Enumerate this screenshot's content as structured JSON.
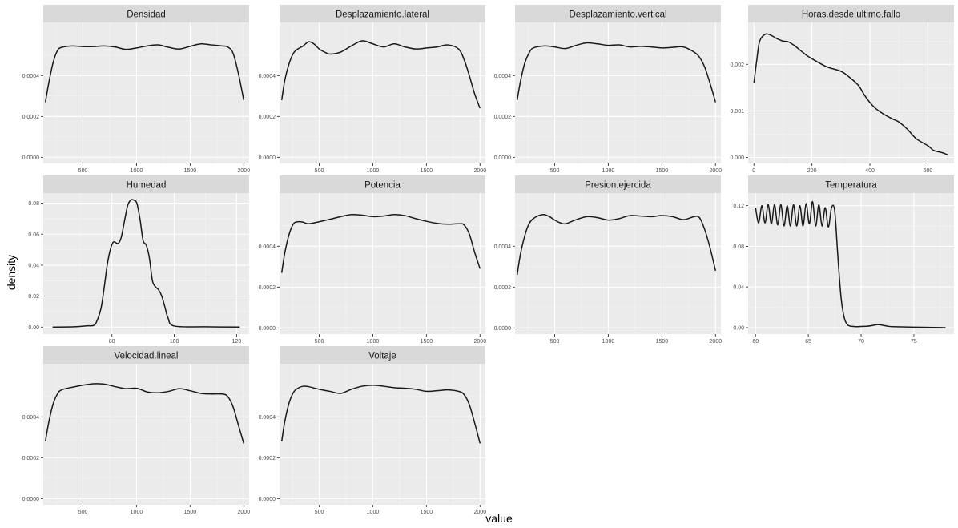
{
  "chart_data": {
    "type": "line",
    "xlabel": "value",
    "ylabel": "density",
    "panels": [
      {
        "name": "Densidad",
        "xlim": [
          130,
          2050
        ],
        "ylim": [
          -3e-05,
          0.00066
        ],
        "xticks": [
          500,
          1000,
          1500,
          2000
        ],
        "yticks": [
          0.0,
          0.0002,
          0.0004
        ],
        "ytick_labels": [
          "0.0000",
          "0.0002",
          "0.0004"
        ],
        "x": [
          150,
          180,
          220,
          260,
          300,
          400,
          500,
          600,
          700,
          800,
          900,
          1000,
          1100,
          1200,
          1300,
          1400,
          1500,
          1600,
          1700,
          1800,
          1850,
          1900,
          1950,
          2000
        ],
        "y": [
          0.00027,
          0.00036,
          0.00046,
          0.00052,
          0.000538,
          0.000545,
          0.000542,
          0.000542,
          0.000545,
          0.00054,
          0.000528,
          0.000535,
          0.000545,
          0.00055,
          0.000538,
          0.00053,
          0.000543,
          0.000555,
          0.00055,
          0.000545,
          0.00054,
          0.00051,
          0.00041,
          0.00028
        ]
      },
      {
        "name": "Desplazamiento.lateral",
        "xlim": [
          130,
          2050
        ],
        "ylim": [
          -3e-05,
          0.00066
        ],
        "xticks": [
          500,
          1000,
          1500,
          2000
        ],
        "yticks": [
          0.0,
          0.0002,
          0.0004
        ],
        "ytick_labels": [
          "0.0000",
          "0.0002",
          "0.0004"
        ],
        "x": [
          150,
          180,
          220,
          260,
          300,
          350,
          400,
          450,
          500,
          550,
          600,
          700,
          800,
          900,
          1000,
          1100,
          1200,
          1300,
          1400,
          1500,
          1600,
          1700,
          1800,
          1850,
          1900,
          1950,
          2000
        ],
        "y": [
          0.00028,
          0.00038,
          0.00046,
          0.00051,
          0.00053,
          0.000545,
          0.000565,
          0.000555,
          0.00053,
          0.000515,
          0.000505,
          0.000515,
          0.000545,
          0.00057,
          0.000555,
          0.00054,
          0.000555,
          0.00054,
          0.00053,
          0.000535,
          0.00054,
          0.00055,
          0.00053,
          0.00048,
          0.0004,
          0.00031,
          0.00024
        ]
      },
      {
        "name": "Desplazamiento.vertical",
        "xlim": [
          130,
          2050
        ],
        "ylim": [
          -3e-05,
          0.00066
        ],
        "xticks": [
          500,
          1000,
          1500,
          2000
        ],
        "yticks": [
          0.0,
          0.0002,
          0.0004
        ],
        "ytick_labels": [
          "0.0000",
          "0.0002",
          "0.0004"
        ],
        "x": [
          150,
          180,
          220,
          260,
          300,
          400,
          500,
          600,
          700,
          800,
          900,
          1000,
          1100,
          1200,
          1300,
          1400,
          1500,
          1600,
          1700,
          1800,
          1850,
          1900,
          1950,
          2000
        ],
        "y": [
          0.00028,
          0.00037,
          0.00046,
          0.00051,
          0.000535,
          0.000545,
          0.00054,
          0.000532,
          0.000548,
          0.00056,
          0.000555,
          0.000548,
          0.00055,
          0.00054,
          0.000543,
          0.00054,
          0.000535,
          0.000538,
          0.00054,
          0.000515,
          0.00049,
          0.00044,
          0.00036,
          0.00027
        ]
      },
      {
        "name": "Horas.desde.ultimo.fallo",
        "xlim": [
          -20,
          690
        ],
        "ylim": [
          -0.00013,
          0.0029
        ],
        "xticks": [
          0,
          200,
          400,
          600
        ],
        "yticks": [
          0.0,
          0.001,
          0.002
        ],
        "ytick_labels": [
          "0.000",
          "0.001",
          "0.002"
        ],
        "x": [
          0,
          10,
          20,
          40,
          60,
          80,
          100,
          120,
          140,
          160,
          180,
          200,
          250,
          300,
          330,
          360,
          380,
          400,
          420,
          450,
          480,
          500,
          530,
          560,
          600,
          620,
          650,
          670
        ],
        "y": [
          0.0016,
          0.0021,
          0.0025,
          0.00265,
          0.00262,
          0.00255,
          0.0025,
          0.00248,
          0.0024,
          0.0023,
          0.0022,
          0.00212,
          0.00195,
          0.00185,
          0.00172,
          0.00155,
          0.00135,
          0.00118,
          0.00105,
          0.00092,
          0.00082,
          0.00076,
          0.0006,
          0.0004,
          0.00025,
          0.00015,
          0.0001,
          5e-05
        ]
      },
      {
        "name": "Humedad",
        "xlim": [
          58,
          124
        ],
        "ylim": [
          -0.0045,
          0.0865
        ],
        "xticks": [
          80,
          100,
          120
        ],
        "yticks": [
          0.0,
          0.02,
          0.04,
          0.06,
          0.08
        ],
        "ytick_labels": [
          "0.00",
          "0.02",
          "0.04",
          "0.06",
          "0.08"
        ],
        "x": [
          61,
          68,
          72,
          74,
          75,
          76.5,
          77.5,
          78.5,
          79.5,
          80.5,
          82,
          83,
          84,
          85,
          86,
          87,
          88,
          89,
          90,
          91,
          92,
          93,
          94,
          95,
          96,
          97,
          98,
          100,
          110,
          121
        ],
        "y": [
          0.0,
          0.0002,
          0.0008,
          0.001,
          0.003,
          0.012,
          0.025,
          0.04,
          0.05,
          0.055,
          0.054,
          0.058,
          0.068,
          0.078,
          0.082,
          0.082,
          0.08,
          0.07,
          0.056,
          0.053,
          0.045,
          0.03,
          0.026,
          0.024,
          0.02,
          0.013,
          0.006,
          0.0007,
          0.0002,
          0.0
        ]
      },
      {
        "name": "Potencia",
        "xlim": [
          130,
          2050
        ],
        "ylim": [
          -3e-05,
          0.00066
        ],
        "xticks": [
          500,
          1000,
          1500,
          2000
        ],
        "yticks": [
          0.0,
          0.0002,
          0.0004
        ],
        "ytick_labels": [
          "0.0000",
          "0.0002",
          "0.0004"
        ],
        "x": [
          150,
          180,
          220,
          260,
          300,
          350,
          400,
          500,
          600,
          700,
          800,
          900,
          1000,
          1100,
          1200,
          1300,
          1400,
          1500,
          1600,
          1700,
          1800,
          1850,
          1900,
          1950,
          2000
        ],
        "y": [
          0.00027,
          0.00037,
          0.00046,
          0.00051,
          0.00052,
          0.000518,
          0.00051,
          0.00052,
          0.000532,
          0.000545,
          0.000555,
          0.000552,
          0.000545,
          0.000548,
          0.000555,
          0.00055,
          0.000535,
          0.000522,
          0.000512,
          0.000508,
          0.00051,
          0.000505,
          0.00046,
          0.00037,
          0.00029
        ]
      },
      {
        "name": "Presion.ejercida",
        "xlim": [
          130,
          2050
        ],
        "ylim": [
          -3e-05,
          0.00066
        ],
        "xticks": [
          500,
          1000,
          1500,
          2000
        ],
        "yticks": [
          0.0,
          0.0002,
          0.0004
        ],
        "ytick_labels": [
          "0.0000",
          "0.0002",
          "0.0004"
        ],
        "x": [
          150,
          180,
          220,
          260,
          300,
          350,
          400,
          450,
          500,
          550,
          600,
          700,
          800,
          900,
          1000,
          1100,
          1200,
          1300,
          1400,
          1500,
          1600,
          1700,
          1800,
          1850,
          1900,
          1950,
          2000
        ],
        "y": [
          0.00026,
          0.00036,
          0.00045,
          0.00051,
          0.000535,
          0.00055,
          0.000555,
          0.000545,
          0.000528,
          0.000515,
          0.00051,
          0.00053,
          0.000545,
          0.00054,
          0.000528,
          0.000535,
          0.00055,
          0.000548,
          0.000545,
          0.00055,
          0.000545,
          0.00053,
          0.000545,
          0.00054,
          0.00048,
          0.00039,
          0.00028
        ]
      },
      {
        "name": "Temperatura",
        "xlim": [
          59.3,
          78.8
        ],
        "ylim": [
          -0.0063,
          0.1323
        ],
        "xticks": [
          60,
          65,
          70,
          75
        ],
        "yticks": [
          0.0,
          0.04,
          0.08,
          0.12
        ],
        "ytick_labels": [
          "0.00",
          "0.04",
          "0.08",
          "0.12"
        ],
        "x": [
          60.0,
          60.3,
          60.6,
          60.9,
          61.2,
          61.5,
          61.8,
          62.1,
          62.4,
          62.7,
          63.0,
          63.3,
          63.6,
          63.9,
          64.2,
          64.5,
          64.8,
          65.1,
          65.4,
          65.7,
          66.0,
          66.3,
          66.6,
          66.9,
          67.2,
          67.5,
          67.8,
          68.1,
          68.4,
          68.7,
          69.0,
          69.3,
          69.6,
          70.0,
          70.5,
          71.0,
          71.5,
          72.0,
          72.5,
          73.0,
          75.0,
          78.0
        ],
        "y": [
          0.118,
          0.103,
          0.12,
          0.103,
          0.121,
          0.102,
          0.121,
          0.101,
          0.121,
          0.1,
          0.12,
          0.1,
          0.121,
          0.1,
          0.12,
          0.1,
          0.122,
          0.102,
          0.124,
          0.1,
          0.121,
          0.1,
          0.118,
          0.099,
          0.118,
          0.115,
          0.07,
          0.03,
          0.01,
          0.003,
          0.0015,
          0.0012,
          0.001,
          0.0012,
          0.0014,
          0.002,
          0.003,
          0.0025,
          0.0015,
          0.001,
          0.0005,
          0.0
        ]
      },
      {
        "name": "Velocidad.lineal",
        "xlim": [
          130,
          2050
        ],
        "ylim": [
          -3e-05,
          0.00066
        ],
        "xticks": [
          500,
          1000,
          1500,
          2000
        ],
        "yticks": [
          0.0,
          0.0002,
          0.0004
        ],
        "ytick_labels": [
          "0.0000",
          "0.0002",
          "0.0004"
        ],
        "x": [
          150,
          180,
          220,
          260,
          300,
          400,
          500,
          600,
          700,
          800,
          900,
          1000,
          1100,
          1200,
          1300,
          1400,
          1500,
          1600,
          1700,
          1800,
          1850,
          1900,
          1950,
          2000
        ],
        "y": [
          0.00028,
          0.00037,
          0.00046,
          0.00051,
          0.000532,
          0.000545,
          0.000555,
          0.000562,
          0.00056,
          0.000548,
          0.000538,
          0.00054,
          0.000522,
          0.000518,
          0.000525,
          0.000538,
          0.000528,
          0.000515,
          0.000512,
          0.000512,
          0.0005,
          0.00045,
          0.00036,
          0.00027
        ]
      },
      {
        "name": "Voltaje",
        "xlim": [
          130,
          2050
        ],
        "ylim": [
          -3e-05,
          0.00066
        ],
        "xticks": [
          500,
          1000,
          1500,
          2000
        ],
        "yticks": [
          0.0,
          0.0002,
          0.0004
        ],
        "ytick_labels": [
          "0.0000",
          "0.0002",
          "0.0004"
        ],
        "x": [
          150,
          180,
          220,
          260,
          300,
          350,
          400,
          500,
          600,
          700,
          800,
          900,
          1000,
          1100,
          1200,
          1300,
          1400,
          1500,
          1600,
          1700,
          1800,
          1850,
          1900,
          1950,
          2000
        ],
        "y": [
          0.00028,
          0.00038,
          0.00047,
          0.00052,
          0.00054,
          0.00055,
          0.000548,
          0.000535,
          0.000525,
          0.000515,
          0.000535,
          0.00055,
          0.000555,
          0.00055,
          0.000543,
          0.00054,
          0.000535,
          0.000525,
          0.000528,
          0.000532,
          0.000525,
          0.00051,
          0.00046,
          0.00037,
          0.00027
        ]
      }
    ]
  }
}
